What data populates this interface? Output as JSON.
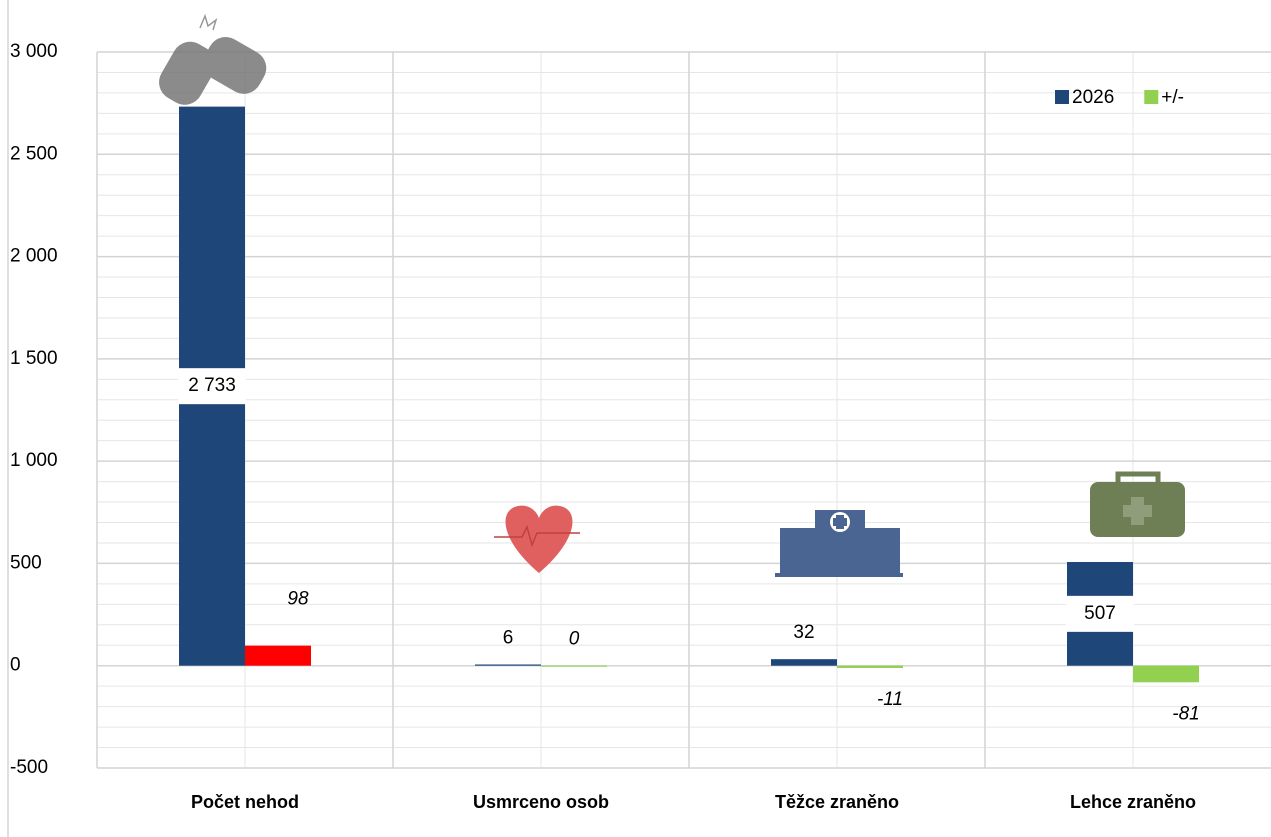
{
  "chart_data": {
    "type": "bar",
    "categories": [
      "Počet nehod",
      "Usmrceno osob",
      "Těžce zraněno",
      "Lehce zraněno"
    ],
    "series": [
      {
        "name": "2026",
        "color": "#1f4678",
        "values": [
          2733,
          6,
          32,
          507
        ],
        "value_labels": [
          "2 733",
          "6",
          "32",
          "507"
        ]
      },
      {
        "name": "+/-",
        "color": "#92d050",
        "colors": [
          "#ff0000",
          "#92d050",
          "#92d050",
          "#92d050"
        ],
        "label_colors": [
          "#ff0000",
          "#000000",
          "#92d050",
          "#92d050"
        ],
        "values": [
          98,
          0,
          -11,
          -81
        ]
      }
    ],
    "ylim": [
      -500,
      3000
    ],
    "yticks": [
      -500,
      0,
      500,
      {
        "value": 1000,
        "label": "1 000"
      },
      {
        "value": 1500,
        "label": "1 500"
      },
      {
        "value": 2000,
        "label": "2 000"
      },
      {
        "value": 2500,
        "label": "2 500"
      },
      {
        "value": 3000,
        "label": "3 000"
      }
    ],
    "grid": true,
    "legend": "top-right"
  }
}
